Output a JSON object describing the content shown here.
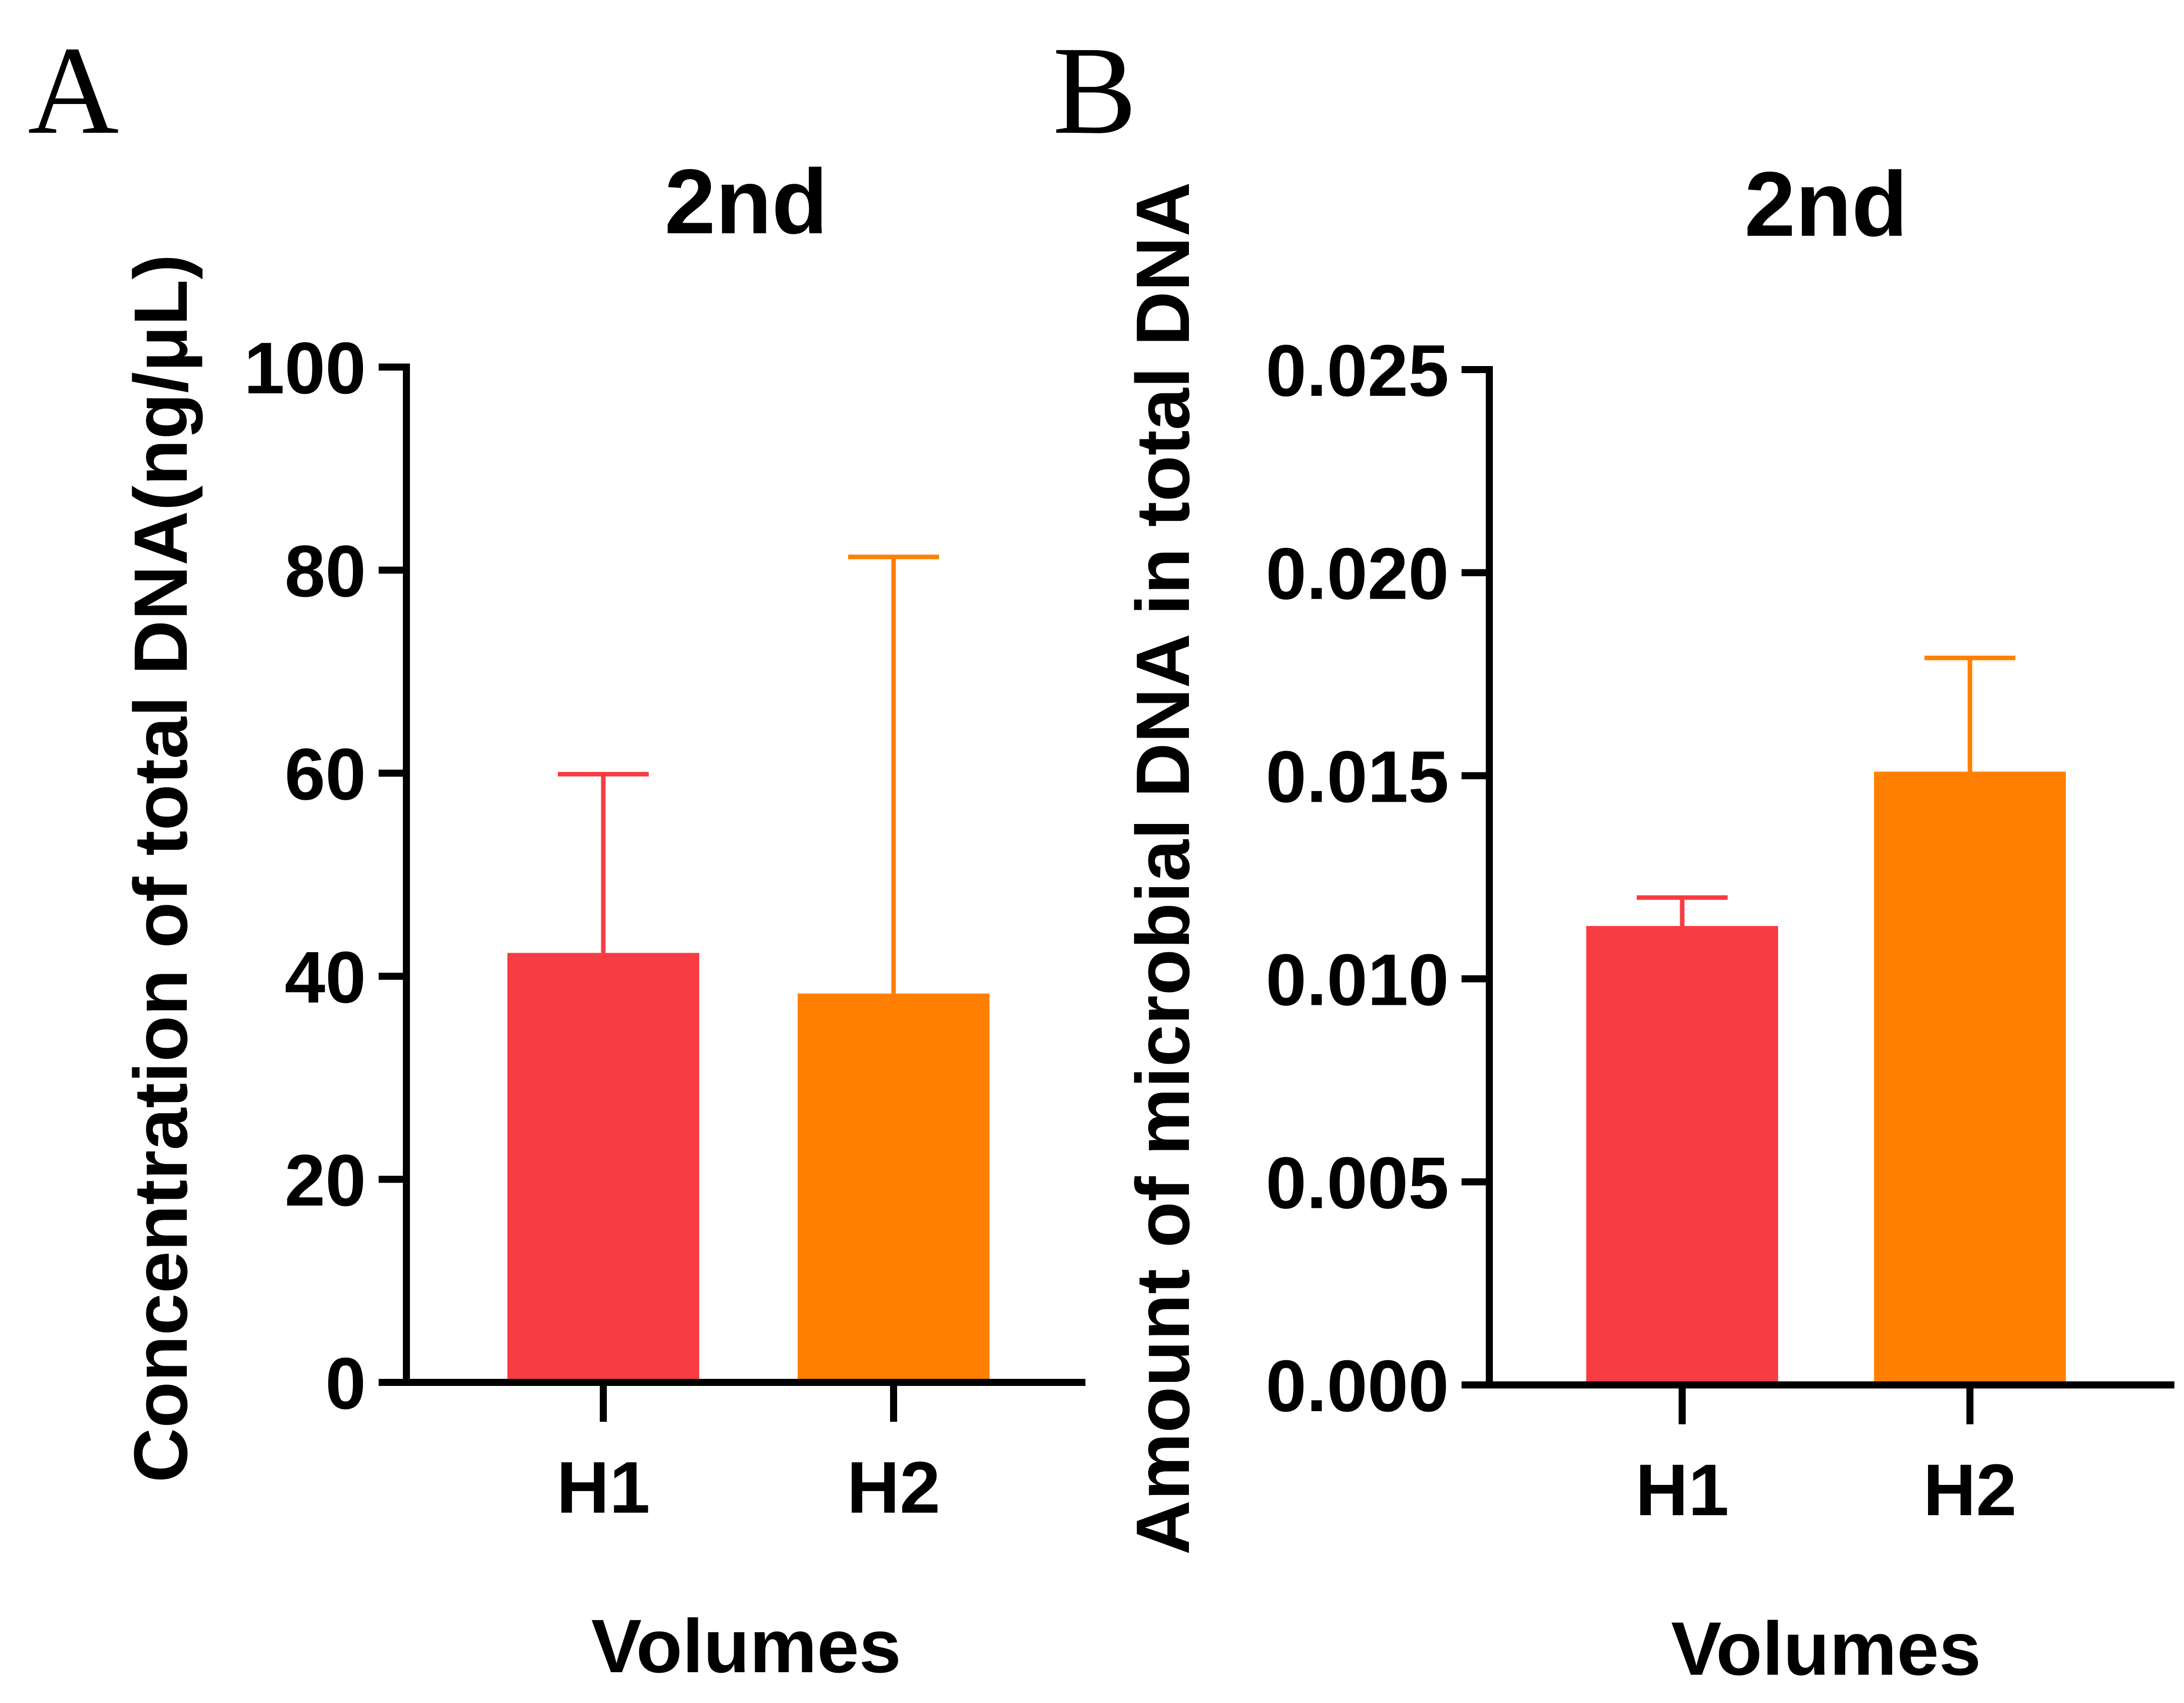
{
  "panels": [
    {
      "letter": "A"
    },
    {
      "letter": "B"
    }
  ],
  "chart_data": [
    {
      "type": "bar",
      "title": "2nd",
      "xlabel": "Volumes",
      "ylabel": "Concentration of total DNA(ng/μL)",
      "categories": [
        "H1",
        "H2"
      ],
      "values": [
        42.3,
        38.3
      ],
      "error_upper": [
        59.9,
        81.3
      ],
      "colors": [
        "#F73D43",
        "#FF8000"
      ],
      "ylim": [
        0,
        100
      ],
      "yticks": [
        0,
        20,
        40,
        60,
        80,
        100
      ],
      "ytick_labels": [
        "0",
        "20",
        "40",
        "60",
        "80",
        "100"
      ],
      "grid": false,
      "legend": "none"
    },
    {
      "type": "bar",
      "title": "2nd",
      "xlabel": "Volumes",
      "ylabel": "Amount of microbial DNA in total DNA",
      "categories": [
        "H1",
        "H2"
      ],
      "values": [
        0.0113,
        0.0151
      ],
      "error_upper": [
        0.012,
        0.0179
      ],
      "colors": [
        "#F73D43",
        "#FF8000"
      ],
      "ylim": [
        0,
        0.025
      ],
      "yticks": [
        0,
        0.005,
        0.01,
        0.015,
        0.02,
        0.025
      ],
      "ytick_labels": [
        "0.000",
        "0.005",
        "0.010",
        "0.015",
        "0.020",
        "0.025"
      ],
      "grid": false,
      "legend": "none"
    }
  ]
}
